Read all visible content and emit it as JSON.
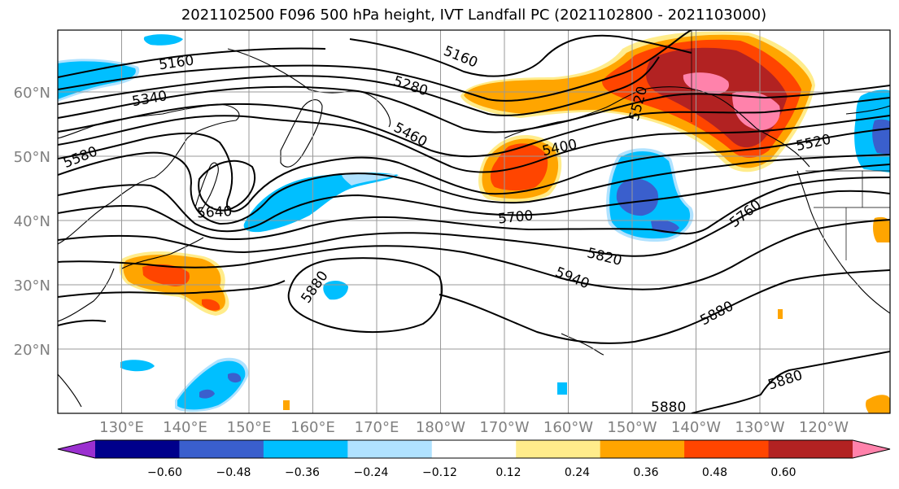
{
  "title": "2021102500 F096 500 hPa height, IVT Landfall PC (2021102800 - 2021103000)",
  "lat_labels": [
    "60°N",
    "50°N",
    "40°N",
    "30°N",
    "20°N"
  ],
  "lon_labels": [
    "130°E",
    "140°E",
    "150°E",
    "160°E",
    "170°E",
    "180°W",
    "170°W",
    "160°W",
    "150°W",
    "140°W",
    "130°W",
    "120°W"
  ],
  "colorbar": {
    "colors": [
      "#9b30d0",
      "#00008b",
      "#3a5fcd",
      "#00bfff",
      "#b0e2ff",
      "#ffffff",
      "#ffec8b",
      "#ffa500",
      "#ff4500",
      "#b22222",
      "#ff82ab"
    ],
    "ticks": [
      "−0.60",
      "−0.48",
      "−0.36",
      "−0.24",
      "−0.12",
      "0.12",
      "0.24",
      "0.36",
      "0.48",
      "0.60"
    ]
  },
  "contour_labels": [
    "5160",
    "5340",
    "5580",
    "5160",
    "5280",
    "5460",
    "5400",
    "5520",
    "5520",
    "5640",
    "5700",
    "5760",
    "5820",
    "5940",
    "5880",
    "5880",
    "5880"
  ]
}
